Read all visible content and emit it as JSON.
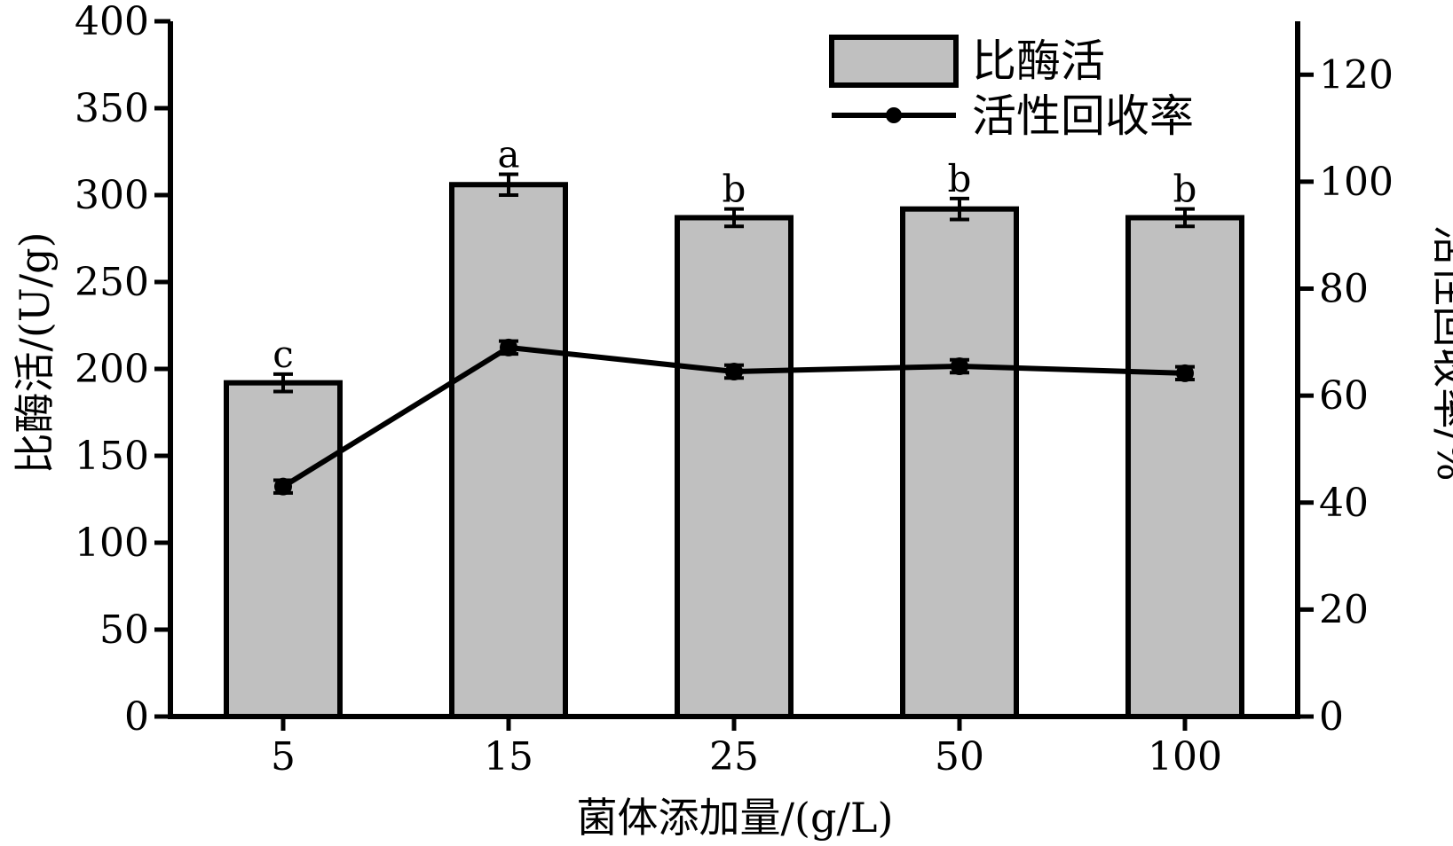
{
  "chart_data": {
    "type": "bar",
    "categories": [
      "5",
      "15",
      "25",
      "50",
      "100"
    ],
    "xlabel": "菌体添加量/(g/L)",
    "ylabel": "比酶活/(U/g)",
    "y2label": "活性回收率/%",
    "ylim": [
      0,
      400
    ],
    "y2lim": [
      0,
      130
    ],
    "yticks": [
      0,
      50,
      100,
      150,
      200,
      250,
      300,
      350,
      400
    ],
    "y2ticks": [
      0,
      20,
      40,
      60,
      80,
      100,
      120
    ],
    "grid": false,
    "legend_position": "top-right",
    "series": [
      {
        "name": "比酶活",
        "kind": "bar",
        "axis": "left",
        "values": [
          192,
          306,
          287,
          292,
          287
        ],
        "errors": [
          5,
          6,
          5,
          6,
          5
        ],
        "labels": [
          "c",
          "a",
          "b",
          "b",
          "b"
        ],
        "color": "#c0c0c0"
      },
      {
        "name": "活性回收率",
        "kind": "line",
        "axis": "right",
        "values": [
          43,
          69,
          64.5,
          65.5,
          64.2
        ],
        "errors": [
          1.2,
          1.2,
          1.2,
          1.2,
          1.2
        ],
        "color": "#000000"
      }
    ]
  }
}
